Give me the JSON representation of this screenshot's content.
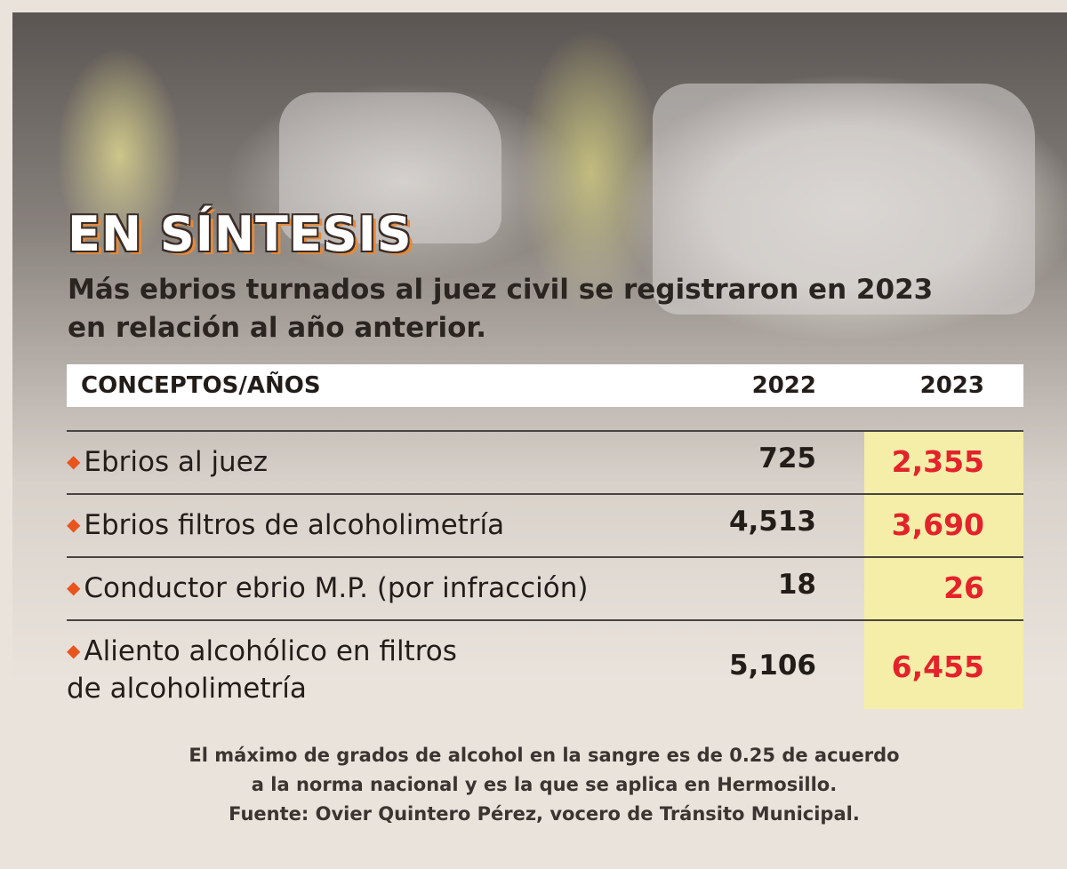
{
  "title": "EN SÍNTESIS",
  "subtitle_lines": [
    "Más ebrios turnados al juez civil se registraron en 2023",
    "en relación al año anterior."
  ],
  "table": {
    "headers": [
      "CONCEPTOS/AÑOS",
      "2022",
      "2023"
    ],
    "rows": [
      {
        "concept": "Ebrios al juez",
        "concept_line2": "",
        "y2022": "725",
        "y2023": "2,355"
      },
      {
        "concept": "Ebrios filtros de alcoholimetría",
        "concept_line2": "",
        "y2022": "4,513",
        "y2023": "3,690"
      },
      {
        "concept": "Conductor ebrio M.P. (por infracción)",
        "concept_line2": "",
        "y2022": "18",
        "y2023": "26"
      },
      {
        "concept": "Aliento alcohólico en filtros",
        "concept_line2": "de alcoholimetría",
        "y2022": "5,106",
        "y2023": "6,455"
      }
    ]
  },
  "footnote_lines": [
    "El máximo de grados de alcohol en la sangre es de 0.25 de acuerdo",
    "a la norma nacional y es la que se aplica en Hermosillo.",
    "Fuente: Ovier Quintero Pérez, vocero de Tránsito Municipal."
  ],
  "colors": {
    "accent_red": "#e3222b",
    "highlight_yellow": "#f4eea8",
    "bullet_orange": "#e8551e",
    "background": "#e9e3dc"
  },
  "icons": {
    "bullet": "diamond-bullet-icon"
  }
}
